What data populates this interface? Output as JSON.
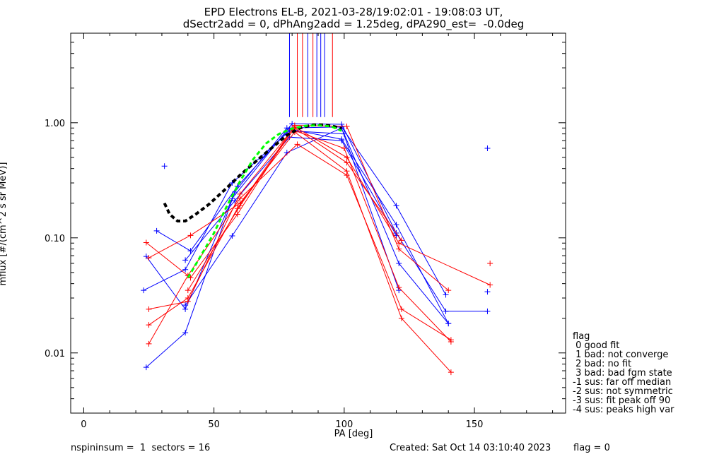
{
  "title_line1": "EPD Electrons EL-B, 2021-03-28/19:02:01 - 19:08:03 UT,",
  "title_line2": "dSectr2add = 0, dPhAng2add = 1.25deg, dPA290_est=  -0.0deg",
  "footer": {
    "left": "nspininsum =  1  sectors = 16",
    "created": "Created: Sat Oct 14 03:10:40 2023",
    "flag": "flag = 0"
  },
  "legend": {
    "title": "flag",
    "items": [
      " 0 good fit",
      " 1 bad: not converge",
      " 2 bad: no fit",
      " 3 bad: bad fgm state",
      "-1 sus: far off median",
      "-2 sus: not symmetric",
      "-3 sus: fit peak off 90",
      "-4 sus: peaks high var"
    ]
  },
  "chart_data": {
    "type": "line",
    "title": "EPD Electrons EL-B, 2021-03-28/19:02:01 - 19:08:03 UT, dSectr2add = 0, dPhAng2add = 1.25deg, dPA290_est=  -0.0deg",
    "xlabel": "PA [deg]",
    "ylabel": "mflux [#/(cm^2 s sr MeV)]",
    "xlim": [
      -5,
      185
    ],
    "ylim": [
      0.003,
      6.0
    ],
    "yscale": "log",
    "xticks": [
      "0",
      "50",
      "100",
      "150"
    ],
    "xtick_values": [
      0,
      50,
      100,
      150
    ],
    "yticks": [
      "0.01",
      "0.10",
      "1.00"
    ],
    "ytick_values": [
      0.01,
      0.1,
      1.0
    ],
    "colors": {
      "blue": "#0000ff",
      "red": "#ff0000",
      "fit": "#000000",
      "median": "#00ff00"
    },
    "vertical_lines": [
      {
        "pa": 79,
        "color": "blue"
      },
      {
        "pa": 82,
        "color": "red"
      },
      {
        "pa": 84,
        "color": "red"
      },
      {
        "pa": 86,
        "color": "blue"
      },
      {
        "pa": 88,
        "color": "red"
      },
      {
        "pa": 89.5,
        "color": "blue"
      },
      {
        "pa": 91,
        "color": "blue"
      },
      {
        "pa": 92.5,
        "color": "blue"
      },
      {
        "pa": 95.5,
        "color": "red"
      }
    ],
    "series": [
      {
        "color": "blue",
        "points": [
          [
            24,
            0.0075
          ],
          [
            39,
            0.015
          ],
          [
            58,
            0.25
          ],
          [
            78,
            0.9
          ],
          [
            99,
            0.92
          ],
          [
            120,
            0.19
          ],
          [
            139,
            0.032
          ]
        ]
      },
      {
        "color": "blue",
        "points": [
          [
            23,
            0.035
          ],
          [
            39,
            0.053
          ],
          [
            57,
            0.3
          ],
          [
            79,
            0.85
          ],
          [
            100,
            0.8
          ],
          [
            121,
            0.06
          ],
          [
            140,
            0.018
          ]
        ]
      },
      {
        "color": "blue",
        "points": [
          [
            24,
            0.069
          ],
          [
            39,
            0.024
          ],
          [
            57,
            0.22
          ],
          [
            80,
            0.98
          ],
          [
            99,
            0.97
          ],
          [
            120,
            0.11
          ],
          [
            139,
            0.023
          ],
          [
            155,
            0.023
          ]
        ]
      },
      {
        "color": "blue",
        "points": [
          [
            28,
            0.115
          ],
          [
            41,
            0.077
          ],
          [
            59,
            0.28
          ],
          [
            79,
            0.88
          ],
          [
            99,
            0.72
          ],
          [
            120,
            0.13
          ],
          [
            140,
            0.018
          ]
        ]
      },
      {
        "color": "blue",
        "points": [
          [
            39,
            0.026
          ],
          [
            57,
            0.104
          ],
          [
            78,
            0.55
          ],
          [
            99,
            0.9
          ],
          [
            121,
            0.035
          ]
        ]
      },
      {
        "color": "blue",
        "points": [
          [
            39,
            0.064
          ],
          [
            58,
            0.21
          ],
          [
            79,
            0.75
          ],
          [
            99,
            0.7
          ],
          [
            120,
            0.105
          ]
        ]
      },
      {
        "color": "red",
        "points": [
          [
            24,
            0.091
          ],
          [
            41,
            0.045
          ],
          [
            59,
            0.16
          ],
          [
            81,
            0.95
          ],
          [
            101,
            0.93
          ],
          [
            121,
            0.08
          ],
          [
            140,
            0.035
          ]
        ]
      },
      {
        "color": "red",
        "points": [
          [
            25,
            0.067
          ],
          [
            41,
            0.105
          ],
          [
            60,
            0.2
          ],
          [
            81,
            0.83
          ],
          [
            101,
            0.38
          ],
          [
            122,
            0.02
          ],
          [
            141,
            0.0068
          ]
        ]
      },
      {
        "color": "red",
        "points": [
          [
            25,
            0.0175
          ],
          [
            40,
            0.03
          ],
          [
            59,
            0.18
          ],
          [
            80,
            0.87
          ],
          [
            100,
            0.6
          ],
          [
            121,
            0.037
          ],
          [
            141,
            0.0125
          ]
        ]
      },
      {
        "color": "red",
        "points": [
          [
            25,
            0.012
          ],
          [
            40,
            0.047
          ],
          [
            60,
            0.22
          ],
          [
            82,
            0.65
          ],
          [
            101,
            0.35
          ],
          [
            122,
            0.024
          ],
          [
            141,
            0.013
          ]
        ]
      },
      {
        "color": "red",
        "points": [
          [
            25,
            0.024
          ],
          [
            40,
            0.028
          ],
          [
            60,
            0.24
          ],
          [
            81,
            0.92
          ],
          [
            101,
            0.5
          ],
          [
            121,
            0.09
          ],
          [
            156,
            0.039
          ]
        ]
      },
      {
        "color": "red",
        "points": [
          [
            40,
            0.035
          ],
          [
            60,
            0.19
          ],
          [
            81,
            0.9
          ],
          [
            101,
            0.45
          ],
          [
            122,
            0.095
          ]
        ]
      }
    ],
    "isolated_points": [
      {
        "color": "blue",
        "pa": 31,
        "value": 0.42
      },
      {
        "color": "blue",
        "pa": 155,
        "value": 0.6
      },
      {
        "color": "blue",
        "pa": 155,
        "value": 0.034
      },
      {
        "color": "red",
        "pa": 156,
        "value": 0.06
      }
    ],
    "fit_curve": [
      [
        31,
        0.2
      ],
      [
        33,
        0.16
      ],
      [
        36,
        0.14
      ],
      [
        39,
        0.14
      ],
      [
        43,
        0.16
      ],
      [
        48,
        0.195
      ],
      [
        54,
        0.26
      ],
      [
        60,
        0.35
      ],
      [
        66,
        0.46
      ],
      [
        72,
        0.6
      ],
      [
        78,
        0.78
      ],
      [
        83,
        0.9
      ],
      [
        88,
        0.96
      ],
      [
        92,
        0.96
      ],
      [
        96,
        0.93
      ],
      [
        99,
        0.89
      ]
    ],
    "median_curve": [
      [
        40,
        0.045
      ],
      [
        45,
        0.07
      ],
      [
        50,
        0.11
      ],
      [
        55,
        0.19
      ],
      [
        60,
        0.31
      ],
      [
        65,
        0.48
      ],
      [
        70,
        0.66
      ],
      [
        75,
        0.8
      ],
      [
        80,
        0.89
      ],
      [
        85,
        0.94
      ],
      [
        90,
        0.95
      ],
      [
        95,
        0.93
      ],
      [
        99,
        0.85
      ]
    ]
  }
}
